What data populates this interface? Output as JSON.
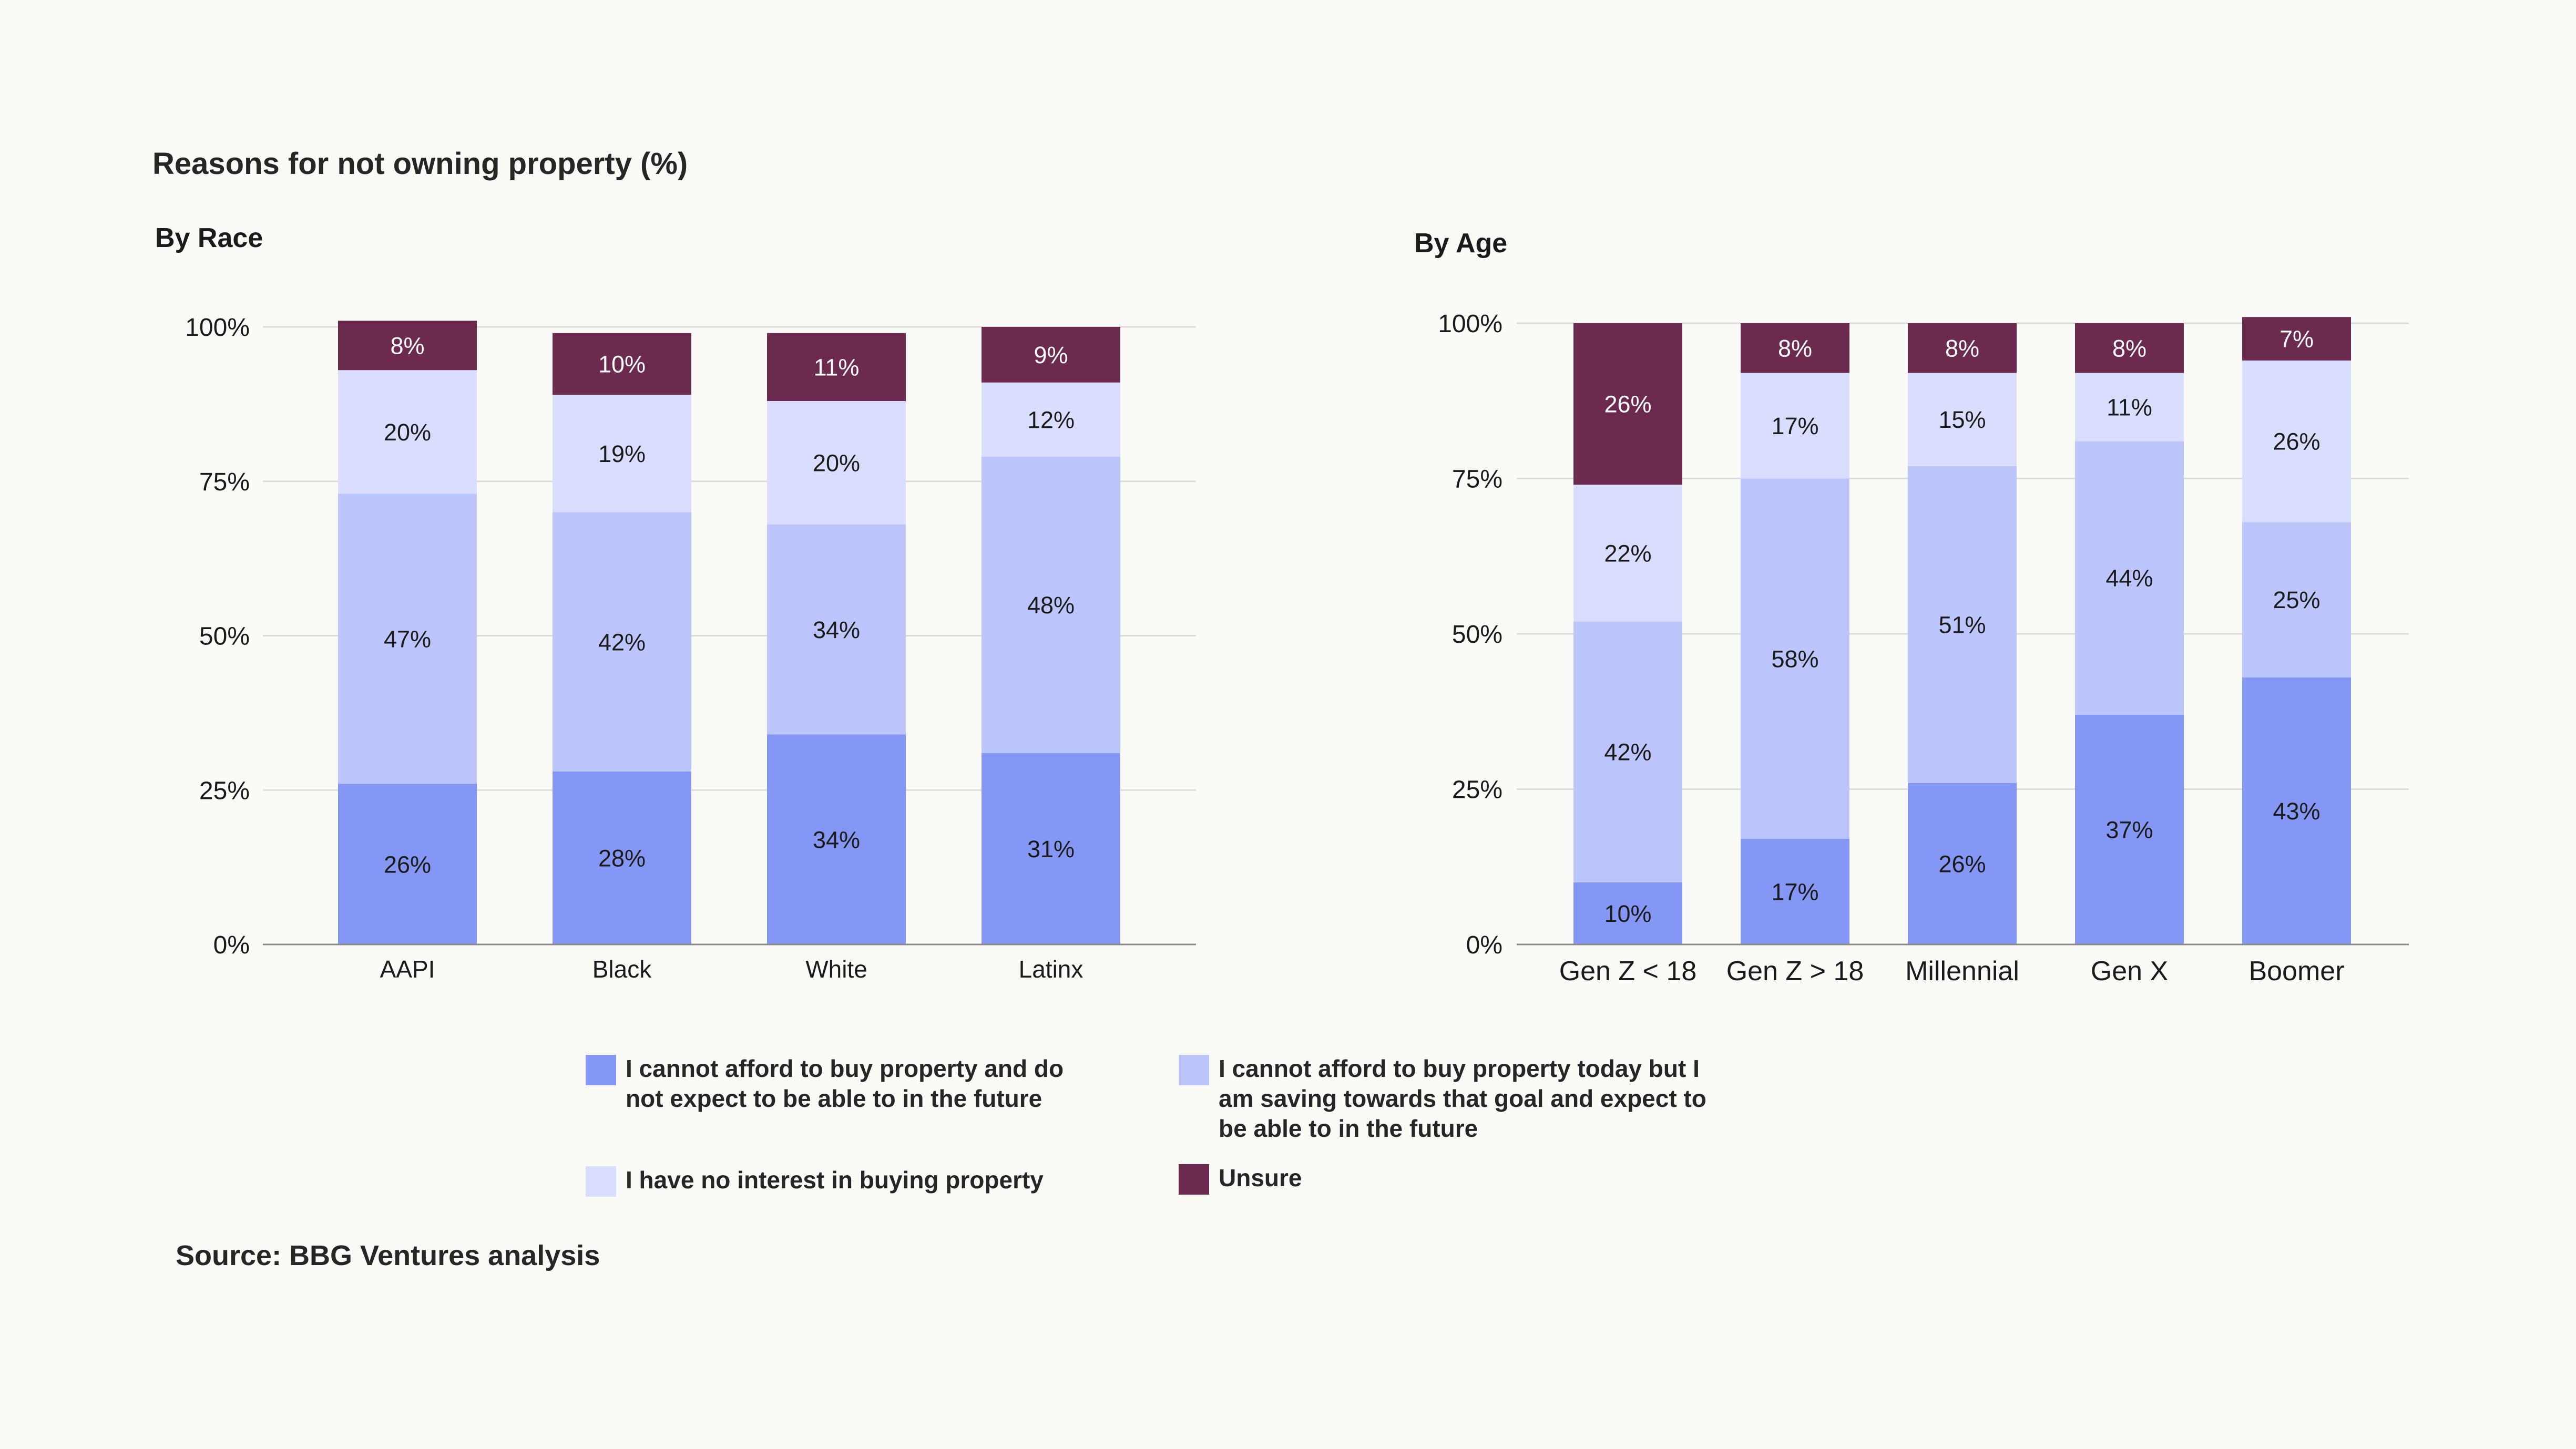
{
  "chart_data": {
    "title": "Reasons for not owning property (%)",
    "source": "Source: BBG Ventures analysis",
    "type": "bar",
    "stacked": true,
    "colors": {
      "cannot_afford_never": "#8597f5",
      "saving": "#bcc6fc",
      "no_interest": "#dadefe",
      "unsure": "#6c2a4e"
    },
    "legend": [
      {
        "key": "cannot_afford_never",
        "label": "I cannot afford to buy property and do not expect to be able to in the future",
        "lines": [
          "I cannot afford to buy property and do",
          "not expect to be able to in the future"
        ]
      },
      {
        "key": "saving",
        "label": "I cannot afford to buy property today but I am saving towards that goal and expect to be able to in the future",
        "lines": [
          "I cannot afford to buy property today but I",
          "am saving towards that goal and expect to",
          "be able to in the future"
        ]
      },
      {
        "key": "no_interest",
        "label": "I have no interest in buying property",
        "lines": [
          "I have no interest in buying property"
        ]
      },
      {
        "key": "unsure",
        "label": "Unsure",
        "lines": [
          "Unsure"
        ]
      }
    ],
    "y_ticks": [
      "0%",
      "25%",
      "50%",
      "75%",
      "100%"
    ],
    "ylim": [
      0,
      100
    ],
    "panels": [
      {
        "title": "By Race",
        "categories": [
          "AAPI",
          "Black",
          "White",
          "Latinx"
        ],
        "series": [
          {
            "key": "cannot_afford_never",
            "values": [
              26,
              28,
              34,
              31
            ],
            "labels": [
              "26%",
              "28%",
              "34%",
              "31%"
            ]
          },
          {
            "key": "saving",
            "values": [
              47,
              42,
              34,
              48
            ],
            "labels": [
              "47%",
              "42%",
              "34%",
              "48%"
            ]
          },
          {
            "key": "no_interest",
            "values": [
              20,
              19,
              20,
              12
            ],
            "labels": [
              "20%",
              "19%",
              "20%",
              "12%"
            ]
          },
          {
            "key": "unsure",
            "values": [
              8,
              10,
              11,
              9
            ],
            "labels": [
              "8%",
              "10%",
              "11%",
              "9%"
            ]
          }
        ]
      },
      {
        "title": "By Age",
        "categories": [
          "Gen Z < 18",
          "Gen Z > 18",
          "Millennial",
          "Gen X",
          "Boomer"
        ],
        "series": [
          {
            "key": "cannot_afford_never",
            "values": [
              10,
              17,
              26,
              37,
              43
            ],
            "labels": [
              "10%",
              "17%",
              "26%",
              "37%",
              "43%"
            ]
          },
          {
            "key": "saving",
            "values": [
              42,
              58,
              51,
              44,
              25
            ],
            "labels": [
              "42%",
              "58%",
              "51%",
              "44%",
              "25%"
            ]
          },
          {
            "key": "no_interest",
            "values": [
              22,
              17,
              15,
              11,
              26
            ],
            "labels": [
              "22%",
              "17%",
              "15%",
              "11%",
              "26%"
            ]
          },
          {
            "key": "unsure",
            "values": [
              26,
              8,
              8,
              8,
              7
            ],
            "labels": [
              "26%",
              "8%",
              "8%",
              "8%",
              "7%"
            ]
          }
        ]
      }
    ]
  }
}
